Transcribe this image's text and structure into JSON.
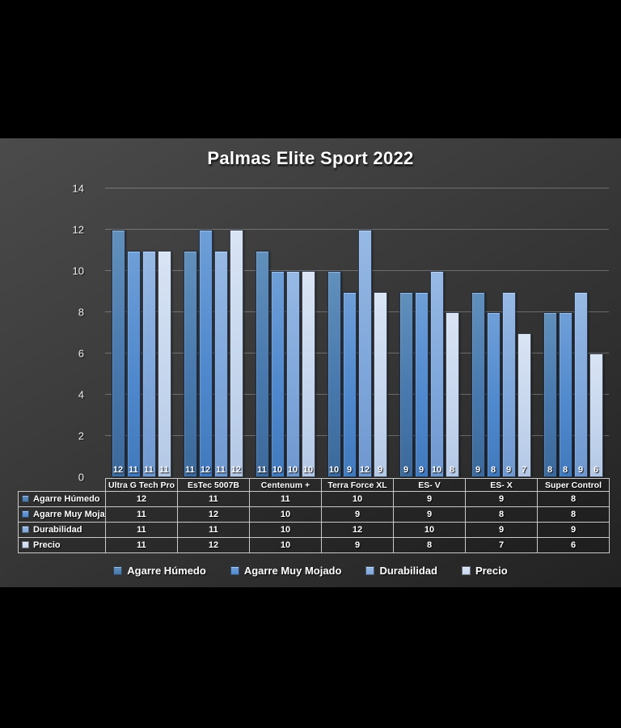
{
  "title": "Palmas Elite Sport 2022",
  "colors": {
    "background_outer": "#000000",
    "panel_top": "#4b4b4b",
    "panel_bottom": "#222222",
    "text": "#ffffff",
    "gridline": "rgba(255,255,255,0.27)",
    "table_border": "#c9c9c9"
  },
  "chart_data": {
    "type": "bar",
    "title": "Palmas Elite Sport 2022",
    "categories": [
      "Ultra G Tech Pro",
      "EsTec 5007B",
      "Centenum +",
      "Terra Force XL",
      "ES- V",
      "ES- X",
      "Super Control"
    ],
    "series": [
      {
        "name": "Agarre Húmedo",
        "color": "#4878ad",
        "color_light": "#6290bc",
        "color_dark": "#3c699b",
        "values": [
          12,
          11,
          11,
          10,
          9,
          9,
          8
        ]
      },
      {
        "name": "Agarre Muy Mojado",
        "color": "#5089cd",
        "color_light": "#6f9fd8",
        "color_dark": "#4179bd",
        "values": [
          11,
          12,
          10,
          9,
          9,
          8,
          8
        ]
      },
      {
        "name": "Durabilidad",
        "color": "#7fa7db",
        "color_light": "#97b9e4",
        "color_dark": "#6f98cf",
        "values": [
          11,
          11,
          10,
          12,
          10,
          9,
          9
        ]
      },
      {
        "name": "Precio",
        "color": "#c6d6ed",
        "color_light": "#d9e4f4",
        "color_dark": "#b3c8e6",
        "values": [
          11,
          12,
          10,
          9,
          8,
          7,
          6
        ]
      }
    ],
    "ylim": [
      0,
      14
    ],
    "yticks": [
      0,
      2,
      4,
      6,
      8,
      10,
      12,
      14
    ],
    "grid": true,
    "data_labels": "inside_base",
    "legend_position": "bottom",
    "data_table_shown": true
  }
}
